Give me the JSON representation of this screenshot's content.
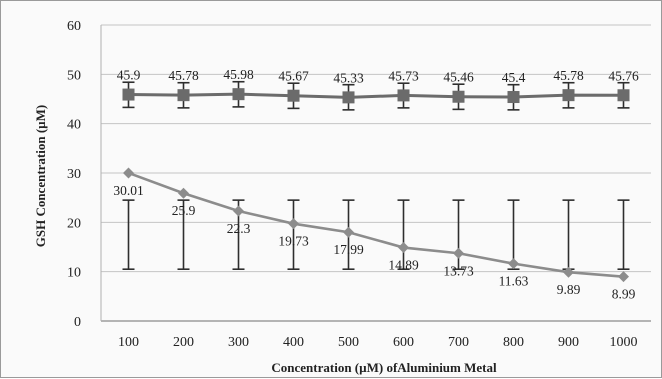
{
  "chart_data": {
    "type": "line",
    "title": "",
    "xlabel": "Concentration (µM) ofAluminium Metal",
    "ylabel": "GSH Concentration (µM)",
    "categories": [
      "100",
      "200",
      "300",
      "400",
      "500",
      "600",
      "700",
      "800",
      "900",
      "1000"
    ],
    "ylim": [
      0,
      60
    ],
    "yticks": [
      "0",
      "10",
      "20",
      "30",
      "40",
      "50",
      "60"
    ],
    "grid": "horizontal",
    "legend": "none",
    "series": [
      {
        "marker": "square",
        "color": "#6b6b6b",
        "values": [
          45.9,
          45.78,
          45.98,
          45.67,
          45.33,
          45.73,
          45.46,
          45.4,
          45.78,
          45.76
        ],
        "labels": [
          "45.9",
          "45.78",
          "45.98",
          "45.67",
          "45.33",
          "45.73",
          "45.46",
          "45.4",
          "45.78",
          "45.76"
        ],
        "error_low": [
          43.3,
          43.2,
          43.4,
          43.1,
          42.8,
          43.2,
          42.9,
          42.8,
          43.2,
          43.2
        ],
        "error_high": [
          48.4,
          48.3,
          48.5,
          48.2,
          47.9,
          48.2,
          48.0,
          47.9,
          48.3,
          48.3
        ]
      },
      {
        "marker": "diamond",
        "color": "#8c8c8c",
        "values": [
          30.01,
          25.9,
          22.3,
          19.73,
          17.99,
          14.89,
          13.73,
          11.63,
          9.89,
          8.99
        ],
        "labels": [
          "30.01",
          "25.9",
          "22.3",
          "19.73",
          "17.99",
          "14.89",
          "13.73",
          "11.63",
          "9.89",
          "8.99"
        ],
        "error_low": [
          10.5,
          10.5,
          10.5,
          10.5,
          10.5,
          10.5,
          10.5,
          10.5,
          10.5,
          10.5
        ],
        "error_high": [
          24.5,
          24.5,
          24.5,
          24.5,
          24.5,
          24.5,
          24.5,
          24.5,
          24.5,
          24.5
        ]
      }
    ]
  }
}
